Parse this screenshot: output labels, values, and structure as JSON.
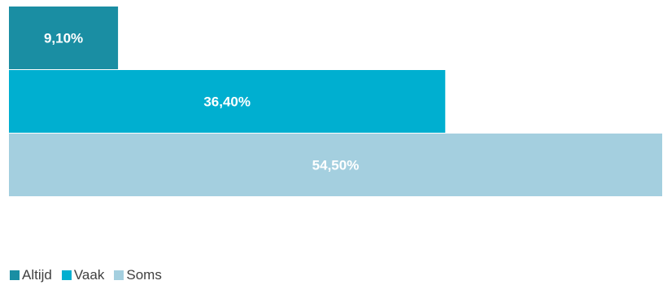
{
  "chart_data": {
    "type": "bar",
    "orientation": "horizontal",
    "stacked": false,
    "categories": [
      "Altijd",
      "Vaak",
      "Soms"
    ],
    "values": [
      9.1,
      36.4,
      54.5
    ],
    "value_labels": [
      "9,10%",
      "36,40%",
      "54,50%"
    ],
    "unit": "%",
    "xlim": [
      0,
      54.5
    ],
    "colors": [
      "#1a8ea3",
      "#00afd0",
      "#a4cfdf"
    ],
    "grid": false,
    "legend_position": "bottom-left"
  }
}
